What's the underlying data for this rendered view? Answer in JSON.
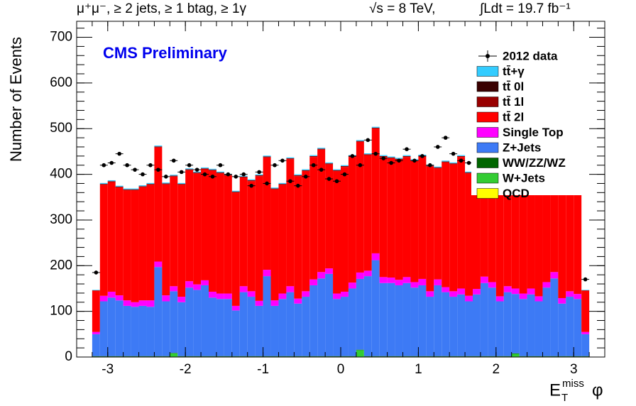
{
  "chart_data": {
    "type": "histogram",
    "header_left": "μ⁺μ⁻, ≥ 2 jets, ≥ 1 btag, ≥ 1γ",
    "header_mid": "√s = 8 TeV,",
    "header_right": "∫Ldt = 19.7 fb⁻¹",
    "annotation": "CMS Preliminary",
    "ylabel": "Number of Events",
    "xlabel": {
      "base": "E",
      "sub": "T",
      "sup": "miss",
      "rest": "φ"
    },
    "xlim": [
      -3.4,
      3.4
    ],
    "ylim": [
      0,
      735
    ],
    "xticks": [
      -3,
      -2,
      -1,
      0,
      1,
      2,
      3
    ],
    "yticks": [
      0,
      100,
      200,
      300,
      400,
      500,
      600,
      700
    ],
    "bins": [
      -3.2,
      -3.1,
      -3.0,
      -2.9,
      -2.8,
      -2.7,
      -2.6,
      -2.5,
      -2.4,
      -2.3,
      -2.2,
      -2.1,
      -2.0,
      -1.9,
      -1.8,
      -1.7,
      -1.6,
      -1.5,
      -1.4,
      -1.3,
      -1.2,
      -1.1,
      -1.0,
      -0.9,
      -0.8,
      -0.7,
      -0.6,
      -0.5,
      -0.4,
      -0.3,
      -0.2,
      -0.1,
      0.0,
      0.1,
      0.2,
      0.3,
      0.4,
      0.5,
      0.6,
      0.7,
      0.8,
      0.9,
      1.0,
      1.1,
      1.2,
      1.3,
      1.4,
      1.5,
      1.6,
      1.7,
      1.8,
      1.9,
      2.0,
      2.1,
      2.2,
      2.3,
      2.4,
      2.5,
      2.6,
      2.7,
      2.8,
      2.9,
      3.0,
      3.1,
      3.2
    ],
    "data": {
      "name": "2012 data",
      "color": "#000000",
      "values": [
        185,
        420,
        425,
        445,
        420,
        410,
        400,
        420,
        410,
        395,
        430,
        405,
        420,
        410,
        400,
        395,
        420,
        400,
        395,
        400,
        375,
        405,
        380,
        420,
        430,
        385,
        375,
        395,
        420,
        410,
        390,
        385,
        400,
        440,
        420,
        475,
        445,
        435,
        425,
        430,
        455,
        430,
        440,
        420,
        460,
        480,
        445,
        430,
        425,
        420,
        445,
        455,
        400,
        430,
        395,
        420,
        410,
        390,
        420,
        400,
        395,
        390,
        395,
        170
      ]
    },
    "series": [
      {
        "name": "tt̄+γ",
        "color": "#33ccff",
        "values": [
          1,
          2,
          2,
          2,
          2,
          2,
          2,
          2,
          2,
          2,
          2,
          2,
          2,
          2,
          2,
          2,
          2,
          2,
          2,
          2,
          2,
          2,
          2,
          2,
          2,
          2,
          2,
          2,
          2,
          2,
          2,
          2,
          2,
          2,
          2,
          2,
          2,
          2,
          2,
          2,
          2,
          2,
          2,
          2,
          2,
          2,
          2,
          2,
          2,
          2,
          2,
          2,
          2,
          2,
          2,
          2,
          2,
          2,
          2,
          2,
          2,
          2,
          2,
          1
        ]
      },
      {
        "name": "tt̄ 0l",
        "color": "#3a0000",
        "values": [
          0,
          0,
          0,
          0,
          0,
          0,
          0,
          0,
          0,
          0,
          0,
          0,
          0,
          0,
          0,
          0,
          0,
          0,
          0,
          0,
          0,
          0,
          0,
          0,
          0,
          0,
          0,
          0,
          0,
          0,
          0,
          0,
          0,
          0,
          0,
          0,
          0,
          0,
          0,
          0,
          0,
          0,
          0,
          0,
          0,
          0,
          0,
          0,
          0,
          0,
          0,
          0,
          0,
          0,
          0,
          0,
          0,
          0,
          0,
          0,
          0,
          0,
          0,
          0
        ]
      },
      {
        "name": "tt̄ 1l",
        "color": "#990000",
        "values": [
          1,
          2,
          2,
          2,
          2,
          2,
          2,
          2,
          2,
          2,
          2,
          2,
          2,
          2,
          2,
          2,
          2,
          2,
          2,
          2,
          2,
          2,
          2,
          2,
          2,
          2,
          2,
          2,
          2,
          2,
          2,
          2,
          2,
          2,
          2,
          2,
          2,
          2,
          2,
          2,
          2,
          2,
          2,
          2,
          2,
          2,
          2,
          2,
          2,
          2,
          2,
          2,
          2,
          2,
          2,
          2,
          2,
          2,
          2,
          2,
          2,
          2,
          2,
          1
        ]
      },
      {
        "name": "tt̄ 2l",
        "color": "#ff0000",
        "values": [
          90,
          243,
          240,
          236,
          241,
          245,
          248,
          253,
          250,
          243,
          240,
          245,
          243,
          243,
          243,
          265,
          263,
          258,
          248,
          238,
          241,
          273,
          246,
          243,
          238,
          278,
          268,
          263,
          268,
          268,
          228,
          268,
          273,
          275,
          286,
          253,
          273,
          263,
          261,
          263,
          263,
          265,
          268,
          273,
          243,
          273,
          278,
          288,
          268,
          266,
          253,
          253,
          258,
          253,
          253,
          238,
          248,
          258,
          243,
          238,
          240,
          238,
          233,
          90
        ]
      },
      {
        "name": "Single Top",
        "color": "#ff00ff",
        "values": [
          5,
          12,
          13,
          11,
          12,
          10,
          12,
          14,
          12,
          13,
          11,
          12,
          14,
          12,
          11,
          13,
          12,
          12,
          10,
          13,
          12,
          11,
          14,
          12,
          12,
          13,
          11,
          12,
          13,
          14,
          12,
          12,
          11,
          13,
          14,
          12,
          15,
          13,
          12,
          12,
          13,
          12,
          14,
          12,
          13,
          11,
          12,
          13,
          12,
          12,
          14,
          12,
          11,
          13,
          12,
          12,
          13,
          11,
          12,
          14,
          12,
          12,
          11,
          5
        ]
      },
      {
        "name": "Z+Jets",
        "color": "#3d7af5",
        "values": [
          48,
          120,
          128,
          122,
          110,
          108,
          110,
          108,
          195,
          120,
          135,
          118,
          150,
          145,
          155,
          128,
          125,
          125,
          100,
          140,
          130,
          110,
          175,
          110,
          125,
          140,
          115,
          130,
          155,
          170,
          180,
          125,
          130,
          148,
          155,
          175,
          210,
          160,
          160,
          155,
          160,
          150,
          155,
          130,
          155,
          140,
          130,
          135,
          120,
          135,
          160,
          150,
          120,
          140,
          130,
          125,
          135,
          120,
          150,
          170,
          115,
          130,
          125,
          48
        ]
      },
      {
        "name": "WW/ZZ/WZ",
        "color": "#006600",
        "values": [
          1,
          1,
          1,
          1,
          1,
          1,
          1,
          1,
          1,
          1,
          1,
          1,
          1,
          1,
          1,
          1,
          1,
          1,
          1,
          1,
          1,
          1,
          1,
          1,
          1,
          1,
          1,
          1,
          1,
          1,
          1,
          1,
          1,
          1,
          1,
          1,
          1,
          1,
          1,
          1,
          1,
          1,
          1,
          1,
          1,
          1,
          1,
          1,
          1,
          1,
          1,
          1,
          1,
          1,
          1,
          1,
          1,
          1,
          1,
          1,
          1,
          1,
          1,
          1
        ]
      },
      {
        "name": "W+Jets",
        "color": "#33cc33",
        "values": [
          1,
          1,
          1,
          1,
          1,
          1,
          1,
          1,
          1,
          1,
          8,
          1,
          1,
          1,
          1,
          1,
          1,
          1,
          1,
          1,
          1,
          1,
          1,
          1,
          1,
          1,
          1,
          1,
          1,
          1,
          1,
          1,
          1,
          1,
          15,
          1,
          1,
          1,
          1,
          1,
          1,
          1,
          1,
          1,
          1,
          1,
          1,
          1,
          1,
          1,
          1,
          1,
          1,
          1,
          7,
          1,
          1,
          1,
          1,
          1,
          1,
          1,
          1,
          1
        ]
      },
      {
        "name": "QCD",
        "color": "#ffff00",
        "values": [
          0,
          0,
          0,
          0,
          0,
          0,
          0,
          0,
          0,
          0,
          0,
          0,
          0,
          0,
          0,
          0,
          0,
          0,
          0,
          0,
          0,
          0,
          0,
          0,
          0,
          0,
          0,
          0,
          0,
          0,
          0,
          0,
          0,
          0,
          0,
          0,
          0,
          0,
          0,
          0,
          0,
          0,
          0,
          0,
          0,
          0,
          0,
          0,
          0,
          0,
          0,
          0,
          0,
          0,
          0,
          0,
          0,
          0,
          0,
          0,
          0,
          0,
          0,
          0
        ]
      }
    ]
  }
}
